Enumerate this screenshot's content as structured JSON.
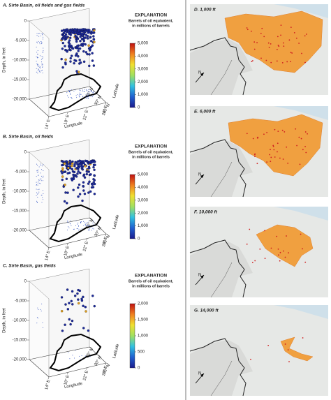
{
  "chart_data": [
    {
      "type": "scatter3d",
      "title": "A. Sirte Basin, oil fields and gas fields",
      "zlabel": "Depth, in feet",
      "xlabel": "Longitude",
      "ylabel": "Latitude",
      "zlim": [
        -20000,
        0
      ],
      "zticks": [
        0,
        {
          "value": -5000,
          "label": "-5,000"
        },
        {
          "value": -10000,
          "label": "-10,000"
        },
        {
          "value": -15000,
          "label": "-15,000"
        },
        {
          "value": -20000,
          "label": "-20,000"
        }
      ],
      "xlim": [
        14,
        26
      ],
      "xticks": [
        {
          "value": 14,
          "label": "14° E"
        },
        {
          "value": 18,
          "label": "18° E"
        },
        {
          "value": 22,
          "label": "22° E"
        },
        {
          "value": 26,
          "label": "26° E"
        }
      ],
      "ylim": [
        25,
        35
      ],
      "yticks": [
        {
          "value": 25,
          "label": "25° N"
        },
        {
          "value": 30,
          "label": "30° N"
        },
        {
          "value": 35,
          "label": "35° N"
        }
      ],
      "colorbar_title": "EXPLANATION",
      "colorbar_label": [
        "Barrels of oil equivalent,",
        "in millions of barrels"
      ],
      "clim": [
        0,
        5000
      ],
      "cticks": [
        0,
        {
          "value": 1000,
          "label": "1,000"
        },
        {
          "value": 2000,
          "label": "2,000"
        },
        {
          "value": 3000,
          "label": "3,000"
        },
        {
          "value": 4000,
          "label": "4,000"
        },
        {
          "value": 5000,
          "label": "5,000"
        }
      ],
      "colormap": [
        "#1a1a8c",
        "#2060d0",
        "#30c0e0",
        "#a0e060",
        "#f0e030",
        "#f08020",
        "#c01010"
      ]
    },
    {
      "type": "scatter3d",
      "title": "B. Sirte Basin, oil fields",
      "zlabel": "Depth, in feet",
      "xlabel": "Longitude",
      "ylabel": "Latitude",
      "zlim": [
        -20000,
        0
      ],
      "zticks": [
        0,
        {
          "value": -5000,
          "label": "-5,000"
        },
        {
          "value": -10000,
          "label": "-10,000"
        },
        {
          "value": -15000,
          "label": "-15,000"
        },
        {
          "value": -20000,
          "label": "-20,000"
        }
      ],
      "xlim": [
        14,
        26
      ],
      "xticks": [
        {
          "value": 14,
          "label": "14° E"
        },
        {
          "value": 18,
          "label": "18° E"
        },
        {
          "value": 22,
          "label": "22° E"
        },
        {
          "value": 26,
          "label": "26° E"
        }
      ],
      "ylim": [
        25,
        35
      ],
      "yticks": [
        {
          "value": 25,
          "label": "25° N"
        },
        {
          "value": 30,
          "label": "30° N"
        },
        {
          "value": 35,
          "label": "35° N"
        }
      ],
      "colorbar_title": "EXPLANATION",
      "colorbar_label": [
        "Barrels of oil equivalent,",
        "in millions of barrels"
      ],
      "clim": [
        0,
        5000
      ],
      "cticks": [
        0,
        {
          "value": 1000,
          "label": "1,000"
        },
        {
          "value": 2000,
          "label": "2,000"
        },
        {
          "value": 3000,
          "label": "3,000"
        },
        {
          "value": 4000,
          "label": "4,000"
        },
        {
          "value": 5000,
          "label": "5,000"
        }
      ],
      "colormap": [
        "#1a1a8c",
        "#2060d0",
        "#30c0e0",
        "#a0e060",
        "#f0e030",
        "#f08020",
        "#c01010"
      ]
    },
    {
      "type": "scatter3d",
      "title": "C. Sirte Basin, gas fields",
      "zlabel": "Depth, in feet",
      "xlabel": "Longitude",
      "ylabel": "Latitude",
      "zlim": [
        -20000,
        0
      ],
      "zticks": [
        0,
        {
          "value": -5000,
          "label": "-5,000"
        },
        {
          "value": -10000,
          "label": "-10,000"
        },
        {
          "value": -15000,
          "label": "-15,000"
        },
        {
          "value": -20000,
          "label": "-20,000"
        }
      ],
      "xlim": [
        14,
        26
      ],
      "xticks": [
        {
          "value": 14,
          "label": "14° E"
        },
        {
          "value": 18,
          "label": "18° E"
        },
        {
          "value": 22,
          "label": "22° E"
        },
        {
          "value": 26,
          "label": "26° E"
        }
      ],
      "ylim": [
        25,
        35
      ],
      "yticks": [
        {
          "value": 25,
          "label": "25° N"
        },
        {
          "value": 30,
          "label": "30° N"
        },
        {
          "value": 35,
          "label": "35° N"
        }
      ],
      "colorbar_title": "EXPLANATION",
      "colorbar_label": [
        "Barrels of oil equivalent,",
        "in millions of barrels"
      ],
      "clim": [
        0,
        2000
      ],
      "cticks": [
        0,
        500,
        {
          "value": 1000,
          "label": "1,000"
        },
        {
          "value": 1500,
          "label": "1,500"
        },
        {
          "value": 2000,
          "label": "2,000"
        }
      ],
      "colormap": [
        "#1a1a8c",
        "#2060d0",
        "#30c0e0",
        "#a0e060",
        "#f0e030",
        "#f08020",
        "#c01010"
      ]
    }
  ],
  "maps": [
    {
      "title": "D. 1,000 ft",
      "north": "N"
    },
    {
      "title": "E. 6,000 ft",
      "north": "N"
    },
    {
      "title": "F. 10,000 ft",
      "north": "N"
    },
    {
      "title": "G. 14,000 ft",
      "north": "N"
    }
  ]
}
